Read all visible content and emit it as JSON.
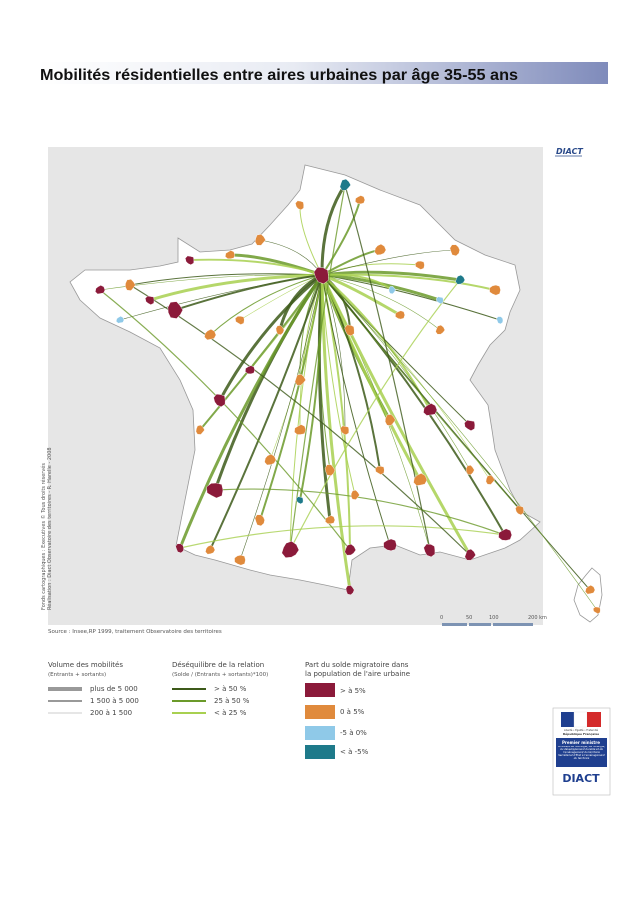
{
  "header": {
    "title": "Mobilités résidentielles entre aires urbaines par âge 35-55 ans"
  },
  "map": {
    "brand": "DIACT",
    "credits": [
      "Fonds cartographiques : Executives © Tous droits réservés",
      "Réalisation : Diact Observatoire des territoires - R. Harelle - 2008"
    ],
    "source": "Source : Insee,RP 1999, traitement Observatoire des territoires",
    "scale": [
      "0",
      "50",
      "100",
      "200 km"
    ]
  },
  "legend": {
    "volume": {
      "title": "Volume des mobilités",
      "subtitle": "(Entrants + sortants)",
      "items": [
        "plus de 5 000",
        "1 500 à 5 000",
        "200 à 1 500"
      ]
    },
    "imbalance": {
      "title": "Déséquilibre de la relation",
      "subtitle": "(Solde / (Entrants + sortants)*100)",
      "items": [
        "> à 50 %",
        "25 à 50 %",
        "< à 25 %"
      ]
    },
    "balance": {
      "title_lines": [
        "Part du solde migratoire dans",
        "la population de l'aire urbaine"
      ],
      "items": [
        "> à 5%",
        "0 à 5%",
        "-5 à 0%",
        "< à -5%"
      ]
    }
  },
  "logo": {
    "motto": "Liberté • Égalité • Fraternité",
    "republic": "République Française",
    "pm": "Premier ministre",
    "ministry": "Ministère de l'écologie, de l'énergie, du développement durable et de l'aménagement du territoire",
    "secretariat": "Secrétariat d'État à l'aménagement du territoire",
    "brand": "DIACT"
  }
}
